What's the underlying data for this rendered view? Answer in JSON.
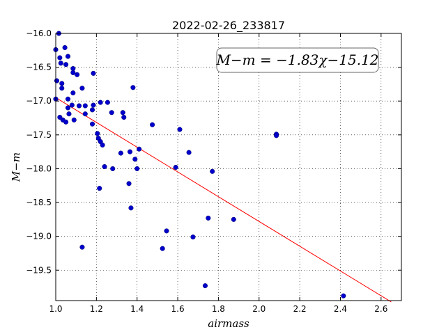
{
  "chart_data": {
    "type": "scatter",
    "title": "2022-02-26_233817",
    "xlabel": "airmass",
    "ylabel": "M−m",
    "xlim": [
      1.0,
      2.7
    ],
    "ylim": [
      -16.0,
      -19.95
    ],
    "y_axis_inverted": true,
    "grid": true,
    "x_ticks": [
      "1.0",
      "1.2",
      "1.4",
      "1.6",
      "1.8",
      "2.0",
      "2.2",
      "2.4",
      "2.6"
    ],
    "y_ticks": [
      "−16.0",
      "−16.5",
      "−17.0",
      "−17.5",
      "−18.0",
      "−18.5",
      "−19.0",
      "−19.5"
    ],
    "annotation": "M−m = −1.83χ−15.12",
    "fit": {
      "slope": -1.83,
      "intercept": -15.12,
      "x_range": [
        1.0,
        2.65
      ],
      "color": "#ff0000"
    },
    "point_color": "#0000cc",
    "points": [
      {
        "x": 1.0,
        "y": -16.24
      },
      {
        "x": 1.015,
        "y": -16.0
      },
      {
        "x": 1.02,
        "y": -16.36
      },
      {
        "x": 1.025,
        "y": -16.44
      },
      {
        "x": 1.005,
        "y": -16.7
      },
      {
        "x": 1.03,
        "y": -16.74
      },
      {
        "x": 1.03,
        "y": -16.81
      },
      {
        "x": 1.045,
        "y": -16.21
      },
      {
        "x": 1.05,
        "y": -16.46
      },
      {
        "x": 1.06,
        "y": -16.34
      },
      {
        "x": 1.085,
        "y": -16.52
      },
      {
        "x": 1.085,
        "y": -16.58
      },
      {
        "x": 1.105,
        "y": -16.61
      },
      {
        "x": 1.0,
        "y": -16.97
      },
      {
        "x": 1.06,
        "y": -16.97
      },
      {
        "x": 1.085,
        "y": -16.88
      },
      {
        "x": 1.13,
        "y": -16.81
      },
      {
        "x": 1.185,
        "y": -16.59
      },
      {
        "x": 1.06,
        "y": -17.1
      },
      {
        "x": 1.08,
        "y": -17.06
      },
      {
        "x": 1.115,
        "y": -17.07
      },
      {
        "x": 1.145,
        "y": -17.07
      },
      {
        "x": 1.185,
        "y": -17.06
      },
      {
        "x": 1.065,
        "y": -17.19
      },
      {
        "x": 1.02,
        "y": -17.24
      },
      {
        "x": 1.035,
        "y": -17.28
      },
      {
        "x": 1.05,
        "y": -17.31
      },
      {
        "x": 1.09,
        "y": -17.28
      },
      {
        "x": 1.145,
        "y": -17.19
      },
      {
        "x": 1.18,
        "y": -17.13
      },
      {
        "x": 1.18,
        "y": -17.34
      },
      {
        "x": 1.22,
        "y": -17.02
      },
      {
        "x": 1.255,
        "y": -17.02
      },
      {
        "x": 1.275,
        "y": -17.17
      },
      {
        "x": 1.33,
        "y": -17.17
      },
      {
        "x": 1.335,
        "y": -17.24
      },
      {
        "x": 1.38,
        "y": -16.8
      },
      {
        "x": 1.205,
        "y": -17.48
      },
      {
        "x": 1.21,
        "y": -17.55
      },
      {
        "x": 1.22,
        "y": -17.6
      },
      {
        "x": 1.23,
        "y": -17.65
      },
      {
        "x": 1.24,
        "y": -17.97
      },
      {
        "x": 1.215,
        "y": -18.29
      },
      {
        "x": 1.28,
        "y": -18.0
      },
      {
        "x": 1.32,
        "y": -17.77
      },
      {
        "x": 1.365,
        "y": -17.75
      },
      {
        "x": 1.39,
        "y": -17.86
      },
      {
        "x": 1.41,
        "y": -17.71
      },
      {
        "x": 1.4,
        "y": -18.0
      },
      {
        "x": 1.36,
        "y": -18.22
      },
      {
        "x": 1.37,
        "y": -18.58
      },
      {
        "x": 1.475,
        "y": -17.35
      },
      {
        "x": 1.61,
        "y": -17.42
      },
      {
        "x": 1.59,
        "y": -17.98
      },
      {
        "x": 1.655,
        "y": -17.76
      },
      {
        "x": 1.77,
        "y": -18.04
      },
      {
        "x": 1.13,
        "y": -19.16
      },
      {
        "x": 1.525,
        "y": -19.18
      },
      {
        "x": 1.545,
        "y": -18.92
      },
      {
        "x": 1.675,
        "y": -19.01
      },
      {
        "x": 1.75,
        "y": -18.73
      },
      {
        "x": 1.875,
        "y": -18.75
      },
      {
        "x": 1.735,
        "y": -19.73
      },
      {
        "x": 2.085,
        "y": -17.49
      },
      {
        "x": 2.085,
        "y": -17.51
      },
      {
        "x": 2.415,
        "y": -19.88
      }
    ]
  }
}
